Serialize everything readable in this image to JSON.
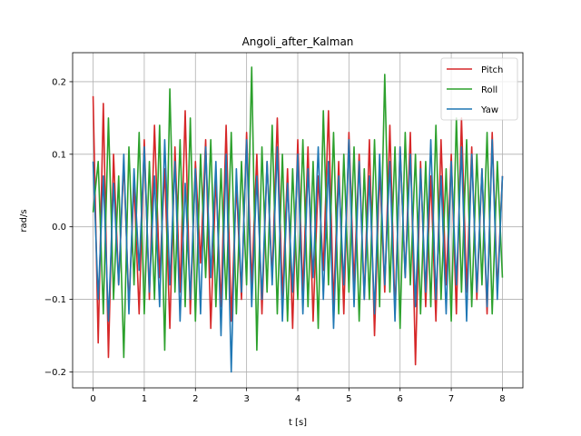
{
  "chart_data": {
    "type": "line",
    "title": "Angoli_after_Kalman",
    "xlabel": "t [s]",
    "ylabel": "rad/s",
    "xlim": [
      -0.4,
      8.4
    ],
    "ylim": [
      -0.222,
      0.24
    ],
    "xticks": [
      0,
      1,
      2,
      3,
      4,
      5,
      6,
      7,
      8
    ],
    "yticks": [
      -0.2,
      -0.1,
      0.0,
      0.1,
      0.2
    ],
    "ytick_labels": [
      "−0.2",
      "−0.1",
      "0.0",
      "0.1",
      "0.2"
    ],
    "grid": true,
    "legend_position": "top-right",
    "series": [
      {
        "name": "Pitch",
        "color": "#d62728",
        "x": [
          0,
          0.1,
          0.2,
          0.3,
          0.4,
          0.5,
          0.6,
          0.7,
          0.8,
          0.9,
          1.0,
          1.1,
          1.2,
          1.3,
          1.4,
          1.5,
          1.6,
          1.7,
          1.8,
          1.9,
          2.0,
          2.1,
          2.2,
          2.3,
          2.4,
          2.5,
          2.6,
          2.7,
          2.8,
          2.9,
          3.0,
          3.1,
          3.2,
          3.3,
          3.4,
          3.5,
          3.6,
          3.7,
          3.8,
          3.9,
          4.0,
          4.1,
          4.2,
          4.3,
          4.4,
          4.5,
          4.6,
          4.7,
          4.8,
          4.9,
          5.0,
          5.1,
          5.2,
          5.3,
          5.4,
          5.5,
          5.6,
          5.7,
          5.8,
          5.9,
          6.0,
          6.1,
          6.2,
          6.3,
          6.4,
          6.5,
          6.6,
          6.7,
          6.8,
          6.9,
          7.0,
          7.1,
          7.2,
          7.3,
          7.4,
          7.5,
          7.6,
          7.7,
          7.8,
          7.9,
          8.0
        ],
        "y": [
          0.18,
          -0.16,
          0.17,
          -0.18,
          0.1,
          -0.08,
          0.09,
          -0.11,
          0.06,
          -0.12,
          0.12,
          -0.1,
          0.14,
          -0.07,
          0.08,
          -0.14,
          0.11,
          -0.09,
          0.16,
          -0.12,
          0.09,
          -0.05,
          0.12,
          -0.14,
          0.07,
          -0.11,
          0.14,
          -0.13,
          0.06,
          -0.1,
          0.13,
          -0.08,
          0.1,
          -0.12,
          0.09,
          -0.07,
          0.15,
          -0.1,
          0.08,
          -0.14,
          0.12,
          -0.09,
          0.11,
          -0.13,
          0.07,
          -0.06,
          0.16,
          -0.11,
          0.09,
          -0.12,
          0.13,
          -0.08,
          0.1,
          -0.1,
          0.12,
          -0.15,
          0.08,
          -0.09,
          0.14,
          -0.12,
          0.11,
          -0.07,
          0.13,
          -0.19,
          0.09,
          -0.11,
          0.07,
          -0.13,
          0.12,
          -0.08,
          0.1,
          -0.12,
          0.15,
          -0.09,
          0.11,
          -0.1,
          0.08,
          -0.12,
          0.13,
          -0.09,
          0.07
        ]
      },
      {
        "name": "Roll",
        "color": "#2ca02c",
        "x": [
          0,
          0.1,
          0.2,
          0.3,
          0.4,
          0.5,
          0.6,
          0.7,
          0.8,
          0.9,
          1.0,
          1.1,
          1.2,
          1.3,
          1.4,
          1.5,
          1.6,
          1.7,
          1.8,
          1.9,
          2.0,
          2.1,
          2.2,
          2.3,
          2.4,
          2.5,
          2.6,
          2.7,
          2.8,
          2.9,
          3.0,
          3.1,
          3.2,
          3.3,
          3.4,
          3.5,
          3.6,
          3.7,
          3.8,
          3.9,
          4.0,
          4.1,
          4.2,
          4.3,
          4.4,
          4.5,
          4.6,
          4.7,
          4.8,
          4.9,
          5.0,
          5.1,
          5.2,
          5.3,
          5.4,
          5.5,
          5.6,
          5.7,
          5.8,
          5.9,
          6.0,
          6.1,
          6.2,
          6.3,
          6.4,
          6.5,
          6.6,
          6.7,
          6.8,
          6.9,
          7.0,
          7.1,
          7.2,
          7.3,
          7.4,
          7.5,
          7.6,
          7.7,
          7.8,
          7.9,
          8.0
        ],
        "y": [
          0.02,
          0.09,
          -0.12,
          0.15,
          -0.1,
          0.07,
          -0.18,
          0.11,
          -0.08,
          0.13,
          -0.12,
          0.09,
          -0.1,
          0.14,
          -0.17,
          0.19,
          -0.09,
          0.12,
          -0.11,
          0.15,
          -0.13,
          0.1,
          -0.07,
          0.12,
          -0.11,
          0.08,
          -0.1,
          0.13,
          -0.12,
          0.09,
          -0.08,
          0.22,
          -0.17,
          0.11,
          -0.09,
          0.14,
          -0.12,
          0.1,
          -0.13,
          0.08,
          -0.1,
          0.12,
          -0.11,
          0.09,
          -0.14,
          0.16,
          -0.08,
          0.13,
          -0.12,
          0.1,
          -0.09,
          0.11,
          -0.13,
          0.08,
          -0.1,
          0.12,
          -0.11,
          0.21,
          -0.09,
          0.11,
          -0.14,
          0.13,
          -0.08,
          0.1,
          -0.12,
          0.09,
          -0.11,
          0.14,
          -0.1,
          0.08,
          -0.13,
          0.15,
          -0.09,
          0.12,
          -0.11,
          0.1,
          -0.08,
          0.13,
          -0.12,
          0.09,
          -0.07
        ]
      },
      {
        "name": "Yaw",
        "color": "#1f77b4",
        "x": [
          0,
          0.1,
          0.2,
          0.3,
          0.4,
          0.5,
          0.6,
          0.7,
          0.8,
          0.9,
          1.0,
          1.1,
          1.2,
          1.3,
          1.4,
          1.5,
          1.6,
          1.7,
          1.8,
          1.9,
          2.0,
          2.1,
          2.2,
          2.3,
          2.4,
          2.5,
          2.6,
          2.7,
          2.8,
          2.9,
          3.0,
          3.1,
          3.2,
          3.3,
          3.4,
          3.5,
          3.6,
          3.7,
          3.8,
          3.9,
          4.0,
          4.1,
          4.2,
          4.3,
          4.4,
          4.5,
          4.6,
          4.7,
          4.8,
          4.9,
          5.0,
          5.1,
          5.2,
          5.3,
          5.4,
          5.5,
          5.6,
          5.7,
          5.8,
          5.9,
          6.0,
          6.1,
          6.2,
          6.3,
          6.4,
          6.5,
          6.6,
          6.7,
          6.8,
          6.9,
          7.0,
          7.1,
          7.2,
          7.3,
          7.4,
          7.5,
          7.6,
          7.7,
          7.8,
          7.9,
          8.0
        ],
        "y": [
          0.09,
          -0.1,
          0.07,
          -0.13,
          0.06,
          -0.08,
          0.1,
          -0.12,
          0.08,
          -0.06,
          0.11,
          -0.09,
          0.07,
          -0.11,
          0.12,
          -0.08,
          0.09,
          -0.13,
          0.06,
          -0.1,
          0.08,
          -0.12,
          0.11,
          -0.07,
          0.09,
          -0.15,
          0.1,
          -0.2,
          0.08,
          -0.09,
          0.12,
          -0.11,
          0.07,
          -0.1,
          0.09,
          -0.08,
          0.11,
          -0.13,
          0.06,
          -0.09,
          0.1,
          -0.12,
          0.08,
          -0.07,
          0.11,
          -0.1,
          0.09,
          -0.14,
          0.07,
          -0.08,
          0.12,
          -0.11,
          0.09,
          -0.1,
          0.07,
          -0.12,
          0.1,
          -0.08,
          0.09,
          -0.13,
          0.11,
          -0.07,
          0.1,
          -0.11,
          0.08,
          -0.09,
          0.12,
          -0.1,
          0.07,
          -0.12,
          0.09,
          -0.08,
          0.11,
          -0.13,
          0.1,
          -0.09,
          0.08,
          -0.11,
          0.12,
          -0.1,
          0.07
        ]
      }
    ]
  }
}
